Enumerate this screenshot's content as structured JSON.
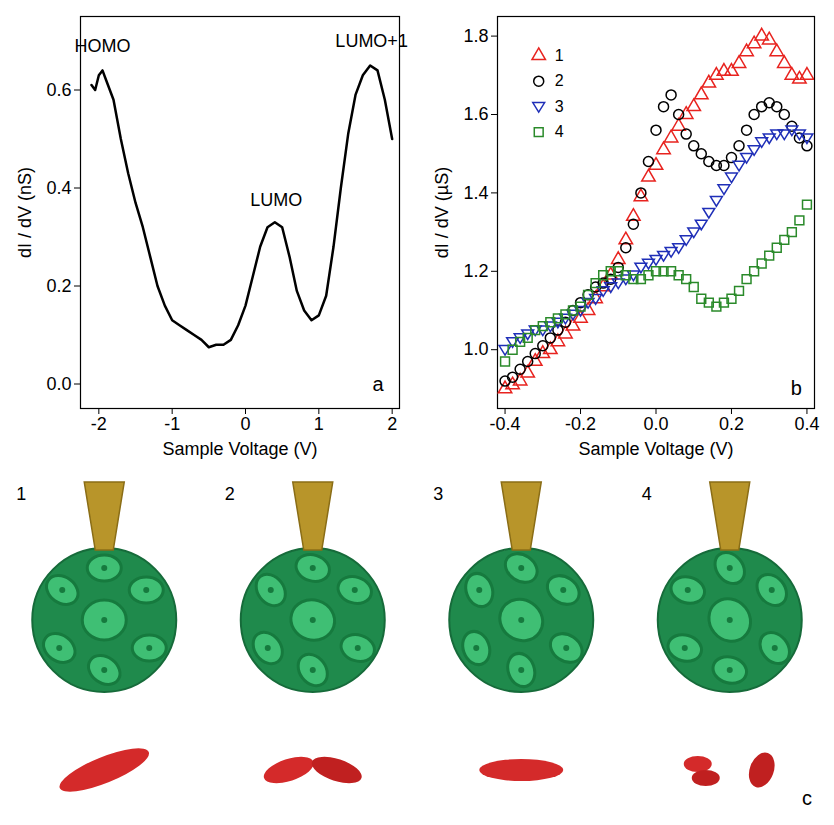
{
  "chart_data": [
    {
      "type": "line",
      "panel_label": "a",
      "x_label": "Sample Voltage (V)",
      "y_label": "dI / dV (nS)",
      "xlim": [
        -2.25,
        2.1
      ],
      "xticks": [
        -2,
        -1,
        0,
        1,
        2
      ],
      "ylim": [
        -0.05,
        0.75
      ],
      "yticks": [
        {
          "value": 0,
          "label": "0.0"
        },
        0.2,
        0.4,
        0.6
      ],
      "color": "#000000",
      "annotations": [
        {
          "text": "HOMO",
          "x": -1.95,
          "y": 0.69
        },
        {
          "text": "LUMO",
          "x": 0.42,
          "y": 0.375
        },
        {
          "text": "LUMO+1",
          "x": 1.72,
          "y": 0.7
        }
      ],
      "x": [
        -2.1,
        -2.05,
        -2.0,
        -1.95,
        -1.9,
        -1.8,
        -1.7,
        -1.6,
        -1.5,
        -1.4,
        -1.3,
        -1.2,
        -1.1,
        -1.0,
        -0.9,
        -0.8,
        -0.7,
        -0.6,
        -0.5,
        -0.4,
        -0.3,
        -0.2,
        -0.1,
        0.0,
        0.1,
        0.2,
        0.3,
        0.4,
        0.5,
        0.6,
        0.7,
        0.8,
        0.9,
        1.0,
        1.1,
        1.2,
        1.3,
        1.4,
        1.5,
        1.6,
        1.7,
        1.8,
        1.9,
        2.0
      ],
      "values": [
        0.61,
        0.6,
        0.63,
        0.64,
        0.62,
        0.58,
        0.5,
        0.43,
        0.37,
        0.32,
        0.26,
        0.2,
        0.16,
        0.13,
        0.12,
        0.11,
        0.1,
        0.09,
        0.075,
        0.08,
        0.08,
        0.09,
        0.12,
        0.16,
        0.22,
        0.28,
        0.32,
        0.33,
        0.32,
        0.26,
        0.19,
        0.15,
        0.13,
        0.14,
        0.18,
        0.28,
        0.4,
        0.51,
        0.59,
        0.63,
        0.65,
        0.64,
        0.58,
        0.5
      ]
    },
    {
      "type": "scatter",
      "panel_label": "b",
      "x_label": "Sample Voltage (V)",
      "y_label": "dI / dV (µS)",
      "xlim": [
        -0.42,
        0.42
      ],
      "xticks": [
        -0.4,
        -0.2,
        {
          "value": 0,
          "label": "0.0"
        },
        0.2,
        0.4
      ],
      "ylim": [
        0.85,
        1.85
      ],
      "yticks": [
        {
          "value": 1,
          "label": "1.0"
        },
        1.2,
        1.4,
        1.6,
        1.8
      ],
      "legend": "top-left",
      "x": [
        -0.4,
        -0.38,
        -0.36,
        -0.34,
        -0.32,
        -0.3,
        -0.28,
        -0.26,
        -0.24,
        -0.22,
        -0.2,
        -0.18,
        -0.16,
        -0.14,
        -0.12,
        -0.1,
        -0.08,
        -0.06,
        -0.04,
        -0.02,
        0.0,
        0.02,
        0.04,
        0.06,
        0.08,
        0.1,
        0.12,
        0.14,
        0.16,
        0.18,
        0.2,
        0.22,
        0.24,
        0.26,
        0.28,
        0.3,
        0.32,
        0.34,
        0.36,
        0.38,
        0.4
      ],
      "series": [
        {
          "name": "1",
          "color": "#e8231f",
          "marker": "triangle",
          "values": [
            0.9,
            0.91,
            0.92,
            0.94,
            0.97,
            0.99,
            1.0,
            1.02,
            1.04,
            1.06,
            1.08,
            1.1,
            1.13,
            1.16,
            1.19,
            1.23,
            1.28,
            1.34,
            1.39,
            1.44,
            1.47,
            1.51,
            1.54,
            1.57,
            1.6,
            1.62,
            1.65,
            1.68,
            1.7,
            1.71,
            1.71,
            1.73,
            1.76,
            1.78,
            1.8,
            1.79,
            1.76,
            1.73,
            1.7,
            1.69,
            1.7
          ]
        },
        {
          "name": "2",
          "color": "#000000",
          "marker": "circle",
          "values": [
            0.92,
            0.93,
            0.95,
            0.97,
            0.99,
            1.01,
            1.03,
            1.05,
            1.07,
            1.1,
            1.12,
            1.14,
            1.16,
            1.17,
            1.18,
            1.21,
            1.26,
            1.32,
            1.4,
            1.48,
            1.56,
            1.62,
            1.65,
            1.6,
            1.55,
            1.52,
            1.5,
            1.48,
            1.47,
            1.47,
            1.49,
            1.52,
            1.56,
            1.6,
            1.62,
            1.63,
            1.62,
            1.6,
            1.57,
            1.54,
            1.52
          ]
        },
        {
          "name": "3",
          "color": "#1f2fb8",
          "marker": "triangle-down",
          "values": [
            1.0,
            1.02,
            1.03,
            1.04,
            1.05,
            1.05,
            1.06,
            1.07,
            1.08,
            1.09,
            1.1,
            1.12,
            1.13,
            1.15,
            1.16,
            1.17,
            1.18,
            1.19,
            1.21,
            1.22,
            1.23,
            1.24,
            1.25,
            1.26,
            1.28,
            1.3,
            1.32,
            1.35,
            1.38,
            1.41,
            1.44,
            1.47,
            1.49,
            1.51,
            1.53,
            1.54,
            1.55,
            1.55,
            1.56,
            1.55,
            1.54
          ]
        },
        {
          "name": "4",
          "color": "#2a8a2a",
          "marker": "square",
          "values": [
            0.97,
            1.0,
            1.02,
            1.03,
            1.05,
            1.06,
            1.07,
            1.08,
            1.09,
            1.1,
            1.11,
            1.14,
            1.17,
            1.19,
            1.2,
            1.2,
            1.19,
            1.18,
            1.18,
            1.19,
            1.2,
            1.2,
            1.2,
            1.19,
            1.18,
            1.16,
            1.13,
            1.12,
            1.11,
            1.12,
            1.13,
            1.15,
            1.18,
            1.2,
            1.22,
            1.24,
            1.26,
            1.28,
            1.3,
            1.33,
            1.37
          ]
        }
      ]
    }
  ],
  "panel_c": {
    "panel_label": "c",
    "items": [
      "1",
      "2",
      "3",
      "4"
    ]
  }
}
